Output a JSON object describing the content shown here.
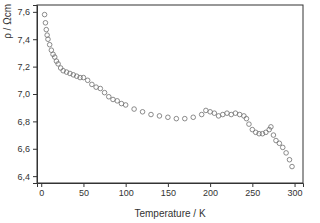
{
  "chart_data": {
    "type": "scatter",
    "x_label": "Temperature / K",
    "y_label": "ρ / Ωcm",
    "marker": "circle",
    "color": "#6f6f6f",
    "x": [
      4,
      5,
      6,
      7,
      8,
      10,
      12,
      14,
      16,
      18,
      20,
      23,
      26,
      30,
      34,
      38,
      42,
      46,
      50,
      55,
      60,
      65,
      70,
      75,
      80,
      85,
      90,
      95,
      100,
      110,
      120,
      130,
      140,
      150,
      160,
      170,
      180,
      190,
      195,
      200,
      205,
      210,
      215,
      220,
      225,
      230,
      235,
      240,
      243,
      246,
      250,
      254,
      258,
      262,
      266,
      270,
      272,
      275,
      278,
      282,
      286,
      290,
      294,
      297
    ],
    "values": [
      7.58,
      7.52,
      7.47,
      7.43,
      7.4,
      7.36,
      7.32,
      7.29,
      7.27,
      7.24,
      7.22,
      7.19,
      7.17,
      7.16,
      7.15,
      7.14,
      7.13,
      7.12,
      7.12,
      7.1,
      7.07,
      7.05,
      7.04,
      7.01,
      6.98,
      6.96,
      6.95,
      6.93,
      6.92,
      6.89,
      6.87,
      6.85,
      6.84,
      6.83,
      6.82,
      6.82,
      6.83,
      6.85,
      6.88,
      6.87,
      6.86,
      6.84,
      6.85,
      6.86,
      6.85,
      6.86,
      6.85,
      6.84,
      6.82,
      6.78,
      6.74,
      6.72,
      6.71,
      6.71,
      6.72,
      6.74,
      6.76,
      6.7,
      6.66,
      6.64,
      6.61,
      6.57,
      6.52,
      6.47
    ],
    "xlim": [
      -5,
      310
    ],
    "ylim": [
      6.35,
      7.65
    ],
    "xticks": [
      0,
      50,
      100,
      150,
      200,
      250,
      300
    ],
    "yticks": [
      {
        "value": 6.4,
        "label": "6,4"
      },
      {
        "value": 6.6,
        "label": "6,6"
      },
      {
        "value": 6.8,
        "label": "6,8"
      },
      {
        "value": 7.0,
        "label": "7,0"
      },
      {
        "value": 7.2,
        "label": "7,2"
      },
      {
        "value": 7.4,
        "label": "7,4"
      },
      {
        "value": 7.6,
        "label": "7,6"
      }
    ]
  }
}
